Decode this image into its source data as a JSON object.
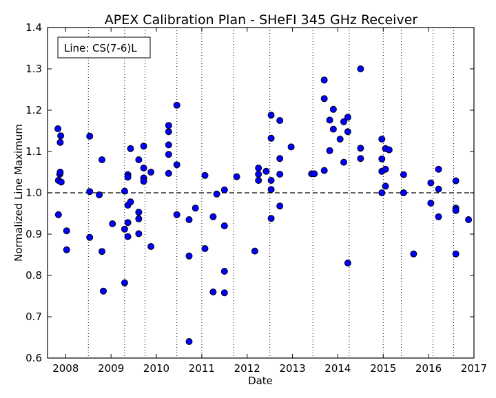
{
  "chart_data": {
    "type": "scatter",
    "title": "APEX Calibration Plan - SHeFI 345 GHz Receiver",
    "xlabel": "Date",
    "ylabel": "Normalized Line Maximum",
    "legend_text": "Line: CS(7-6)L",
    "legend_position": "top-left",
    "xlim": [
      2007.6,
      2017.0
    ],
    "ylim": [
      0.6,
      1.4
    ],
    "x_ticks": [
      2008,
      2009,
      2010,
      2011,
      2012,
      2013,
      2014,
      2015,
      2016,
      2017
    ],
    "x_tick_labels": [
      "2008",
      "2009",
      "2010",
      "2011",
      "2012",
      "2013",
      "2014",
      "2015",
      "2016",
      "2017"
    ],
    "y_ticks": [
      0.6,
      0.7,
      0.8,
      0.9,
      1.0,
      1.1,
      1.2,
      1.3,
      1.4
    ],
    "y_tick_labels": [
      "0.6",
      "0.7",
      "0.8",
      "0.9",
      "1.0",
      "1.1",
      "1.2",
      "1.3",
      "1.4"
    ],
    "vertical_dotted_lines_x": [
      2008.5,
      2009.3,
      2009.75,
      2010.45,
      2011.0,
      2011.7,
      2012.5,
      2013.45,
      2014.25,
      2015.0,
      2015.4,
      2016.1,
      2016.55
    ],
    "reference_line_y": 1.0,
    "marker_color": "#0000ff",
    "marker_edge_color": "#000000",
    "points": [
      [
        2007.83,
        1.155
      ],
      [
        2007.84,
        1.03
      ],
      [
        2007.84,
        0.947
      ],
      [
        2007.87,
        1.045
      ],
      [
        2007.88,
        1.05
      ],
      [
        2007.88,
        1.122
      ],
      [
        2007.89,
        1.138
      ],
      [
        2007.9,
        1.026
      ],
      [
        2008.02,
        0.908
      ],
      [
        2008.02,
        0.862
      ],
      [
        2008.53,
        1.137
      ],
      [
        2008.53,
        1.003
      ],
      [
        2008.53,
        0.892
      ],
      [
        2008.74,
        0.995
      ],
      [
        2008.8,
        1.08
      ],
      [
        2008.8,
        0.858
      ],
      [
        2008.83,
        0.762
      ],
      [
        2009.03,
        0.925
      ],
      [
        2009.3,
        1.004
      ],
      [
        2009.3,
        0.912
      ],
      [
        2009.3,
        0.782
      ],
      [
        2009.37,
        1.044
      ],
      [
        2009.37,
        1.038
      ],
      [
        2009.37,
        0.97
      ],
      [
        2009.37,
        0.928
      ],
      [
        2009.37,
        0.894
      ],
      [
        2009.43,
        1.107
      ],
      [
        2009.43,
        0.978
      ],
      [
        2009.61,
        1.08
      ],
      [
        2009.61,
        0.953
      ],
      [
        2009.61,
        0.937
      ],
      [
        2009.61,
        0.901
      ],
      [
        2009.72,
        1.113
      ],
      [
        2009.72,
        1.06
      ],
      [
        2009.72,
        1.036
      ],
      [
        2009.72,
        1.028
      ],
      [
        2009.88,
        1.05
      ],
      [
        2009.88,
        0.87
      ],
      [
        2010.27,
        1.163
      ],
      [
        2010.27,
        1.148
      ],
      [
        2010.27,
        1.116
      ],
      [
        2010.27,
        1.093
      ],
      [
        2010.27,
        1.047
      ],
      [
        2010.45,
        1.212
      ],
      [
        2010.45,
        1.068
      ],
      [
        2010.45,
        0.947
      ],
      [
        2010.72,
        0.935
      ],
      [
        2010.72,
        0.847
      ],
      [
        2010.72,
        0.64
      ],
      [
        2010.86,
        0.963
      ],
      [
        2011.07,
        1.042
      ],
      [
        2011.07,
        0.865
      ],
      [
        2011.25,
        0.942
      ],
      [
        2011.25,
        0.76
      ],
      [
        2011.33,
        0.997
      ],
      [
        2011.5,
        1.007
      ],
      [
        2011.5,
        0.92
      ],
      [
        2011.5,
        0.81
      ],
      [
        2011.5,
        0.758
      ],
      [
        2011.77,
        1.039
      ],
      [
        2012.17,
        0.859
      ],
      [
        2012.25,
        1.06
      ],
      [
        2012.25,
        1.045
      ],
      [
        2012.25,
        1.03
      ],
      [
        2012.42,
        1.052
      ],
      [
        2012.53,
        1.188
      ],
      [
        2012.53,
        1.132
      ],
      [
        2012.53,
        1.03
      ],
      [
        2012.53,
        1.008
      ],
      [
        2012.53,
        0.938
      ],
      [
        2012.72,
        1.175
      ],
      [
        2012.72,
        1.083
      ],
      [
        2012.72,
        1.045
      ],
      [
        2012.72,
        0.968
      ],
      [
        2012.97,
        1.111
      ],
      [
        2013.42,
        1.046
      ],
      [
        2013.48,
        1.046
      ],
      [
        2013.7,
        1.273
      ],
      [
        2013.7,
        1.228
      ],
      [
        2013.7,
        1.054
      ],
      [
        2013.82,
        1.176
      ],
      [
        2013.82,
        1.102
      ],
      [
        2013.9,
        1.202
      ],
      [
        2013.9,
        1.154
      ],
      [
        2014.05,
        1.13
      ],
      [
        2014.13,
        1.172
      ],
      [
        2014.13,
        1.074
      ],
      [
        2014.22,
        1.183
      ],
      [
        2014.22,
        1.148
      ],
      [
        2014.22,
        0.83
      ],
      [
        2014.5,
        1.3
      ],
      [
        2014.5,
        1.108
      ],
      [
        2014.5,
        1.083
      ],
      [
        2014.97,
        1.13
      ],
      [
        2014.97,
        1.082
      ],
      [
        2014.97,
        1.052
      ],
      [
        2014.97,
        1.0
      ],
      [
        2015.05,
        1.107
      ],
      [
        2015.05,
        1.057
      ],
      [
        2015.05,
        1.016
      ],
      [
        2015.13,
        1.104
      ],
      [
        2015.45,
        1.044
      ],
      [
        2015.45,
        1.0
      ],
      [
        2015.67,
        0.852
      ],
      [
        2016.05,
        1.024
      ],
      [
        2016.05,
        0.975
      ],
      [
        2016.22,
        1.057
      ],
      [
        2016.22,
        1.009
      ],
      [
        2016.22,
        0.942
      ],
      [
        2016.6,
        1.029
      ],
      [
        2016.6,
        0.963
      ],
      [
        2016.6,
        0.957
      ],
      [
        2016.6,
        0.852
      ],
      [
        2016.88,
        0.935
      ]
    ]
  }
}
